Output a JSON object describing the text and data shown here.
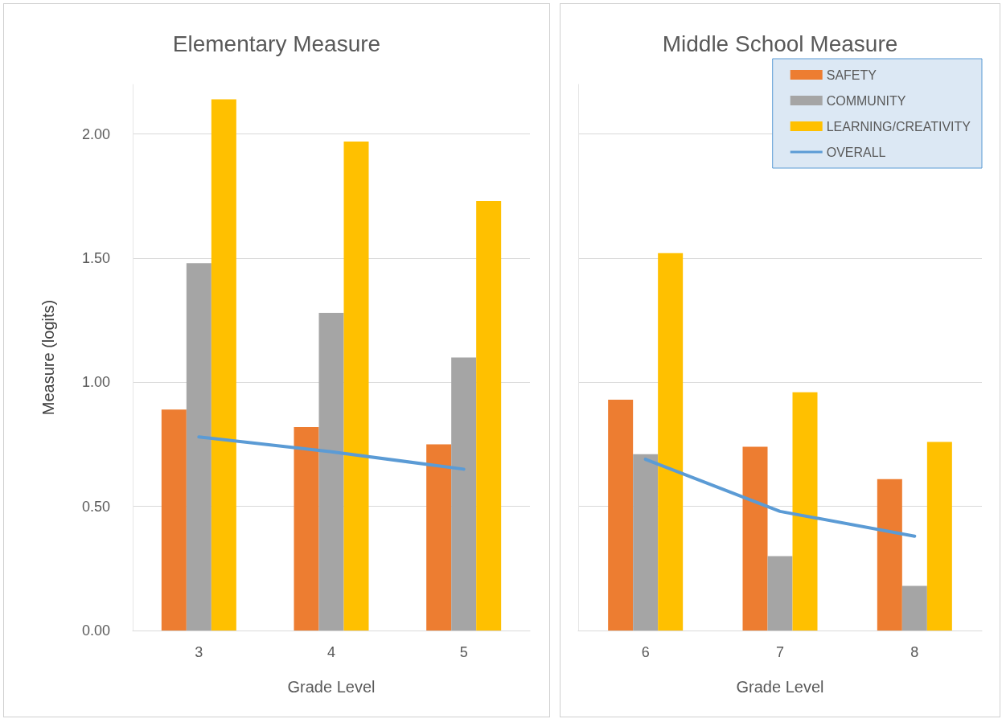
{
  "chart_data": [
    {
      "type": "bar",
      "title": "Elementary Measure",
      "xlabel": "Grade Level",
      "ylabel": "Measure (logits)",
      "categories": [
        "3",
        "4",
        "5"
      ],
      "series": [
        {
          "color": "#ed7d31",
          "values": [
            0.89,
            0.82,
            0.75
          ]
        },
        {
          "color": "#a5a5a5",
          "values": [
            1.48,
            1.28,
            1.1
          ]
        },
        {
          "color": "#ffc000",
          "values": [
            2.14,
            1.97,
            1.73
          ]
        },
        {
          "type": "line",
          "color": "#5b9bd5",
          "values": [
            0.78,
            0.72,
            0.65
          ]
        }
      ],
      "ylim": [
        0,
        2.2
      ],
      "yticks": [
        {
          "value": 0,
          "label": "0.00"
        },
        {
          "value": 0.5,
          "label": "0.50"
        },
        {
          "value": 1,
          "label": "1.00"
        },
        {
          "value": 1.5,
          "label": "1.50"
        },
        {
          "value": 2,
          "label": "2.00"
        }
      ],
      "grid": "y",
      "legend": false,
      "marker": "none"
    },
    {
      "type": "bar",
      "title": "Middle School Measure",
      "xlabel": "Grade Level",
      "categories": [
        "6",
        "7",
        "8"
      ],
      "series": [
        {
          "name": "SAFETY",
          "color": "#ed7d31",
          "values": [
            0.93,
            0.74,
            0.61
          ]
        },
        {
          "name": "COMMUNITY",
          "color": "#a5a5a5",
          "values": [
            0.71,
            0.3,
            0.18
          ]
        },
        {
          "name": "LEARNING/CREATIVITY",
          "color": "#ffc000",
          "values": [
            1.52,
            0.96,
            0.76
          ]
        },
        {
          "name": "OVERALL",
          "type": "line",
          "color": "#5b9bd5",
          "values": [
            0.69,
            0.48,
            0.38
          ]
        }
      ],
      "ylim": [
        0,
        2.2
      ],
      "yticks": [
        0,
        0.5,
        1,
        1.5,
        2
      ],
      "grid": "y",
      "legend": "top right",
      "marker": "none",
      "tick_labels": "x"
    }
  ]
}
